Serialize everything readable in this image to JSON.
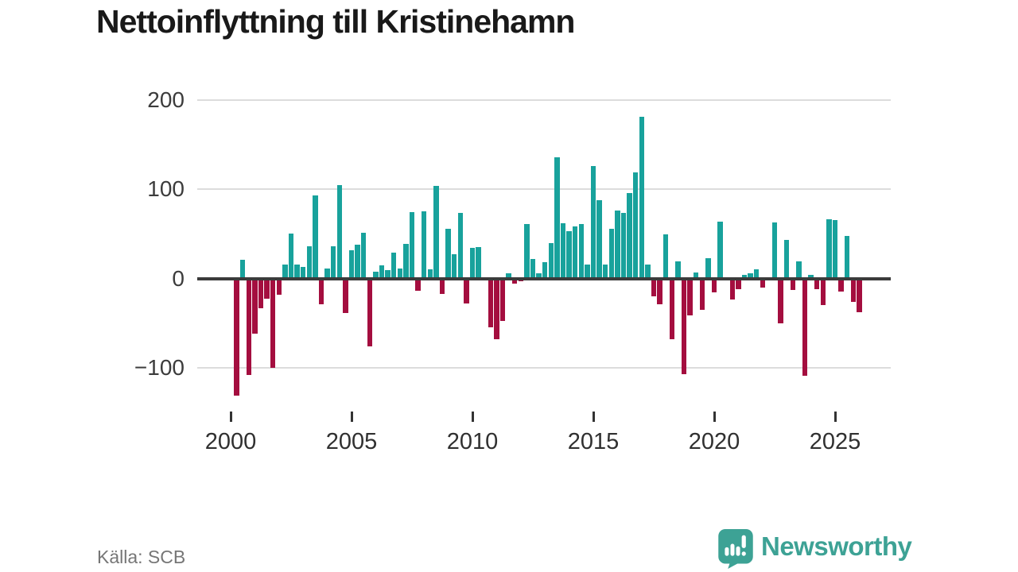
{
  "title": "Nettoinflyttning till Kristinehamn",
  "source": "Källa: SCB",
  "brand": {
    "name": "Newsworthy",
    "color": "#3da295"
  },
  "chart_data": {
    "type": "bar",
    "title": "Nettoinflyttning till Kristinehamn",
    "x_unit": "quarter",
    "x_start": "2000 Q1",
    "x_tick_labels": [
      "2000",
      "2005",
      "2010",
      "2015",
      "2020",
      "2025"
    ],
    "x_tick_step_quarters": 20,
    "y_tick_values": [
      200,
      100,
      0,
      -100
    ],
    "y_tick_labels": [
      "200",
      "100",
      "0",
      "−100"
    ],
    "ylim": [
      -140,
      205
    ],
    "grid": "horizontal",
    "legend": "none",
    "positive_color": "#18a29c",
    "negative_color": "#a40e3f",
    "values": [
      0,
      -131,
      21,
      -108,
      -62,
      -33,
      -23,
      -100,
      -18,
      16,
      50,
      16,
      13,
      36,
      93,
      -29,
      11,
      36,
      105,
      -39,
      32,
      38,
      51,
      -76,
      8,
      15,
      9,
      29,
      11,
      39,
      74,
      -14,
      75,
      10,
      104,
      -17,
      56,
      27,
      73,
      -28,
      34,
      35,
      0,
      -55,
      -68,
      -48,
      6,
      -6,
      -3,
      61,
      22,
      6,
      18,
      40,
      136,
      62,
      53,
      58,
      61,
      16,
      126,
      88,
      16,
      56,
      76,
      73,
      96,
      119,
      181,
      16,
      -20,
      -29,
      49,
      -68,
      19,
      -107,
      -41,
      7,
      -35,
      23,
      -16,
      64,
      0,
      -24,
      -12,
      4,
      6,
      10,
      -10,
      0,
      63,
      -50,
      43,
      -13,
      19,
      -109,
      4,
      -12,
      -30,
      66,
      65,
      -15,
      48,
      -26,
      -38
    ]
  }
}
